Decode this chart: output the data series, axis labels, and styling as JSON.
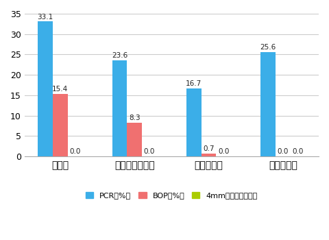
{
  "categories": [
    "初診時",
    "動的治療開始時",
    "保定開始時",
    "保定終了時"
  ],
  "series": {
    "PCR（%）": [
      33.1,
      23.6,
      16.7,
      25.6
    ],
    "BOP（%）": [
      15.4,
      8.3,
      0.7,
      0.0
    ],
    "4mm以上のポケット": [
      0.0,
      0.0,
      0.0,
      0.0
    ]
  },
  "colors": {
    "PCR（%）": "#3BAEE8",
    "BOP（%）": "#F07070",
    "4mm以上のポケット": "#AACC00"
  },
  "legend_labels": [
    "PCR（%）",
    "BOP（%）",
    "4mm以上のポケット"
  ],
  "legend_display": [
    "PCR（%）",
    "BOP（%）",
    "4mm以上のポケット"
  ],
  "ylim": [
    0,
    35
  ],
  "yticks": [
    0,
    5,
    10,
    15,
    20,
    25,
    30,
    35
  ],
  "bar_width": 0.2,
  "background_color": "#FFFFFF",
  "grid_color": "#CCCCCC",
  "label_fontsize": 8.5,
  "value_fontsize": 7.5,
  "legend_fontsize": 8,
  "tick_fontsize": 9
}
